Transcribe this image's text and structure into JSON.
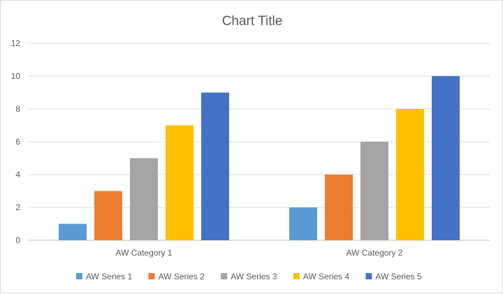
{
  "chart_data": {
    "type": "bar",
    "title": "Chart Title",
    "xlabel": "",
    "ylabel": "",
    "ylim": [
      0,
      12
    ],
    "yticks": [
      0,
      2,
      4,
      6,
      8,
      10,
      12
    ],
    "grid": true,
    "legend_position": "bottom",
    "categories": [
      "AW Category 1",
      "AW Category 2"
    ],
    "series": [
      {
        "name": "AW Series 1",
        "values": [
          1,
          2
        ],
        "color": "#5B9BD5"
      },
      {
        "name": "AW Series 2",
        "values": [
          3,
          4
        ],
        "color": "#ED7D31"
      },
      {
        "name": "AW Series 3",
        "values": [
          5,
          6
        ],
        "color": "#A5A5A5"
      },
      {
        "name": "AW Series 4",
        "values": [
          7,
          8
        ],
        "color": "#FFC000"
      },
      {
        "name": "AW Series 5",
        "values": [
          9,
          10
        ],
        "color": "#4472C4"
      }
    ]
  }
}
